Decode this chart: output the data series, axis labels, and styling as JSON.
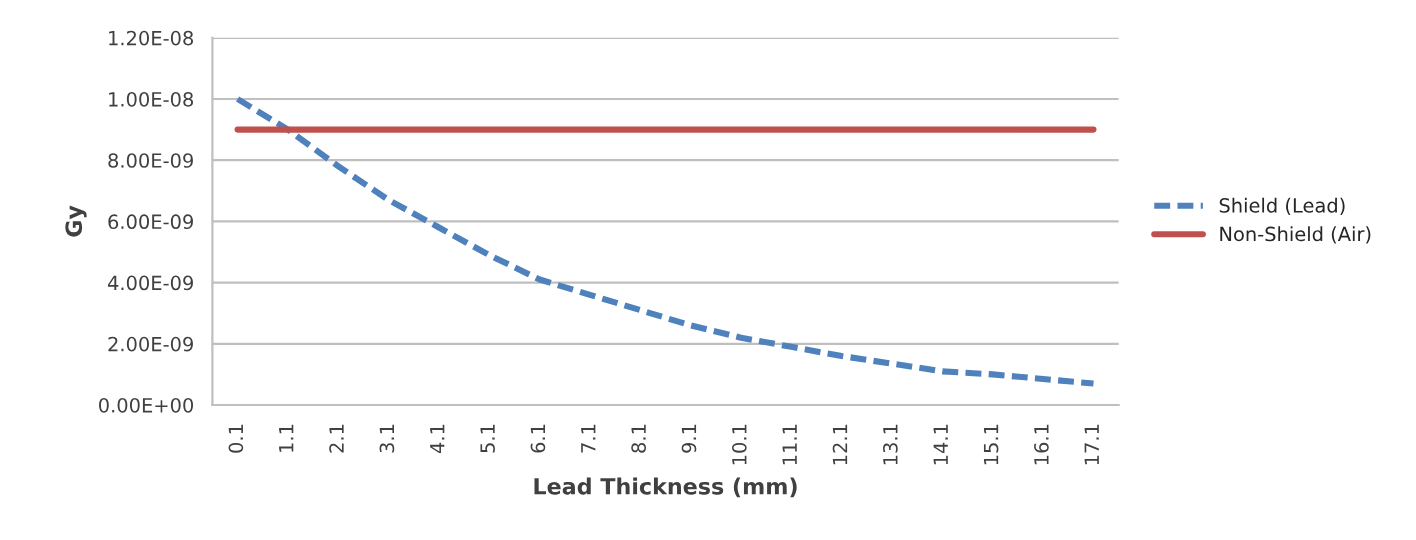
{
  "chart_data": {
    "type": "line",
    "xlabel": "Lead Thickness (mm)",
    "ylabel": "Gy",
    "categories": [
      "0.1",
      "1.1",
      "2.1",
      "3.1",
      "4.1",
      "5.1",
      "6.1",
      "7.1",
      "8.1",
      "9.1",
      "10.1",
      "11.1",
      "12.1",
      "13.1",
      "14.1",
      "15.1",
      "16.1",
      "17.1"
    ],
    "series": [
      {
        "name": "Shield (Lead)",
        "color": "#4f81bd",
        "line_style": "dashed",
        "values": [
          1e-08,
          9e-09,
          7.8e-09,
          6.7e-09,
          5.8e-09,
          4.9e-09,
          4.1e-09,
          3.6e-09,
          3.1e-09,
          2.6e-09,
          2.2e-09,
          1.9e-09,
          1.6e-09,
          1.35e-09,
          1.1e-09,
          1e-09,
          8.5e-10,
          7e-10
        ]
      },
      {
        "name": "Non-Shield (Air)",
        "color": "#c0504d",
        "line_style": "solid",
        "values": [
          9e-09,
          9e-09,
          9e-09,
          9e-09,
          9e-09,
          9e-09,
          9e-09,
          9e-09,
          9e-09,
          9e-09,
          9e-09,
          9e-09,
          9e-09,
          9e-09,
          9e-09,
          9e-09,
          9e-09,
          9e-09
        ]
      }
    ],
    "ylim": [
      0,
      1.2e-08
    ],
    "yticks": [
      {
        "value": 0,
        "label": "0.00E+00"
      },
      {
        "value": 2e-09,
        "label": "2.00E-09"
      },
      {
        "value": 4e-09,
        "label": "4.00E-09"
      },
      {
        "value": 6e-09,
        "label": "6.00E-09"
      },
      {
        "value": 8e-09,
        "label": "8.00E-09"
      },
      {
        "value": 1e-08,
        "label": "1.00E-08"
      },
      {
        "value": 1.2e-08,
        "label": "1.20E-08"
      }
    ],
    "grid": "y",
    "legend": "right",
    "marker": "none"
  }
}
